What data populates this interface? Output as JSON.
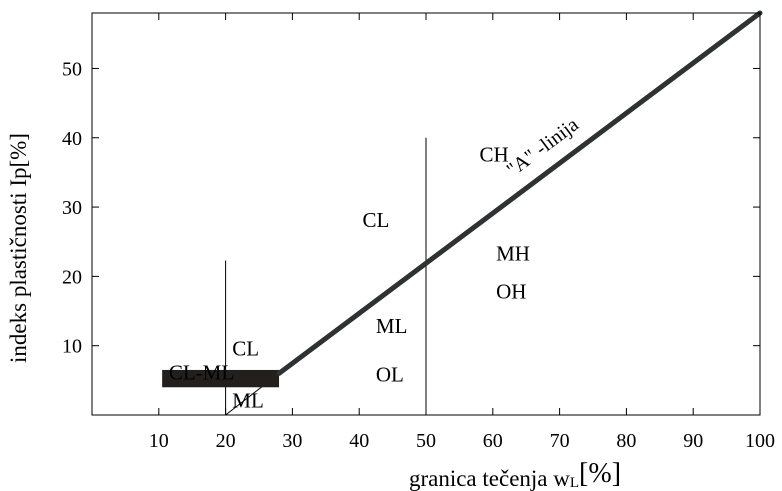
{
  "chart_data": {
    "type": "line",
    "xlabel_main": "granica tečenja w",
    "xlabel_sub": "L",
    "xlabel_unit": "[%]",
    "ylabel": "indeks plastičnosti Ip[%]",
    "xlim": [
      0,
      100
    ],
    "ylim": [
      0,
      58
    ],
    "x_ticks": [
      10,
      20,
      30,
      40,
      50,
      60,
      70,
      80,
      90,
      100
    ],
    "y_ticks": [
      10,
      20,
      30,
      40,
      50
    ],
    "grid": false,
    "colors": {
      "a_line": "#2e3232",
      "band": "#231f1c",
      "lines": "#000000"
    },
    "a_line": {
      "label": "\"A\" -linija",
      "points": [
        [
          28,
          6
        ],
        [
          100,
          58
        ]
      ]
    },
    "cl_ml_band": {
      "x0": 10.5,
      "x1": 28,
      "y0": 4,
      "y1": 6.5
    },
    "vertical_lines": [
      {
        "x": 20,
        "y0": 0,
        "y1": 22.3
      },
      {
        "x": 50,
        "y0": 0,
        "y1": 40
      }
    ],
    "diagonal_lines": [
      {
        "x0": 20,
        "y0": 0,
        "x1": 28,
        "y1": 6
      }
    ],
    "regions": [
      {
        "label": "CL",
        "x": 21,
        "y": 8.6
      },
      {
        "label": "CL-ML",
        "x": 11.5,
        "y": 5.1
      },
      {
        "label": "ML",
        "x": 21,
        "y": 1.1
      },
      {
        "label": "CL",
        "x": 40.5,
        "y": 27.1
      },
      {
        "label": "ML",
        "x": 42.5,
        "y": 11.8
      },
      {
        "label": "OL",
        "x": 42.5,
        "y": 4.8
      },
      {
        "label": "CH",
        "x": 58,
        "y": 36.6
      },
      {
        "label": "MH",
        "x": 60.5,
        "y": 22.3
      },
      {
        "label": "OH",
        "x": 60.5,
        "y": 16.8
      }
    ]
  }
}
